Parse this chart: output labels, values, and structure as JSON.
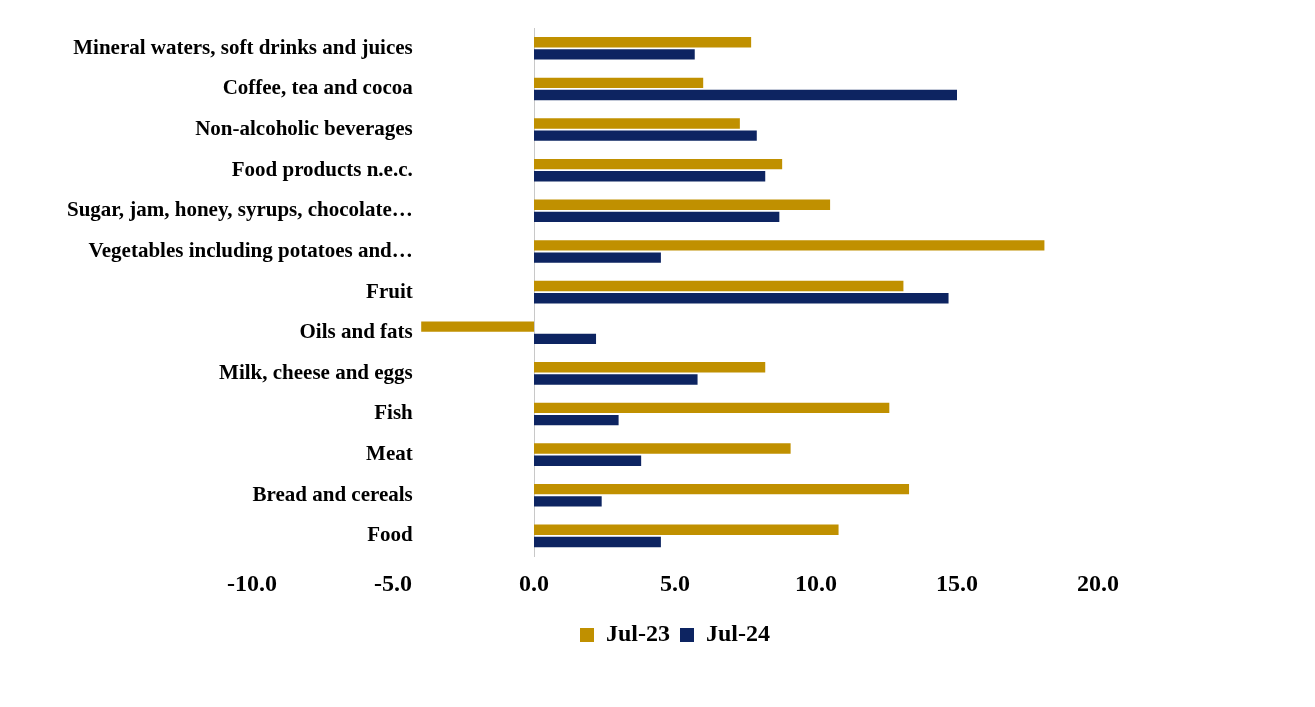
{
  "chart_data": {
    "type": "bar",
    "orientation": "horizontal",
    "categories": [
      "Mineral waters, soft drinks and juices",
      "Coffee, tea and cocoa",
      "Non-alcoholic beverages",
      "Food products n.e.c.",
      "Sugar, jam, honey, syrups, chocolate…",
      "Vegetables including potatoes and…",
      "Fruit",
      "Oils and fats",
      "Milk, cheese and eggs",
      "Fish",
      "Meat",
      "Bread and cereals",
      "Food"
    ],
    "series": [
      {
        "name": "Jul-23",
        "color": "#c09000",
        "values": [
          7.7,
          6.0,
          7.3,
          8.8,
          10.5,
          18.1,
          13.1,
          -4.0,
          8.2,
          12.6,
          9.1,
          13.3,
          10.8
        ]
      },
      {
        "name": "Jul-24",
        "color": "#0d2461",
        "values": [
          5.7,
          15.0,
          7.9,
          8.2,
          8.7,
          4.5,
          14.7,
          2.2,
          5.8,
          3.0,
          3.8,
          2.4,
          4.5
        ]
      }
    ],
    "xlim": [
      -10,
      20
    ],
    "xticks": [
      {
        "value": -10,
        "label": "-10.0"
      },
      {
        "value": -5,
        "label": "-5.0"
      },
      {
        "value": 0,
        "label": "0.0"
      },
      {
        "value": 5,
        "label": "5.0"
      },
      {
        "value": 10,
        "label": "10.0"
      },
      {
        "value": 15,
        "label": "15.0"
      },
      {
        "value": 20,
        "label": "20.0"
      }
    ],
    "legend": "bottom"
  }
}
